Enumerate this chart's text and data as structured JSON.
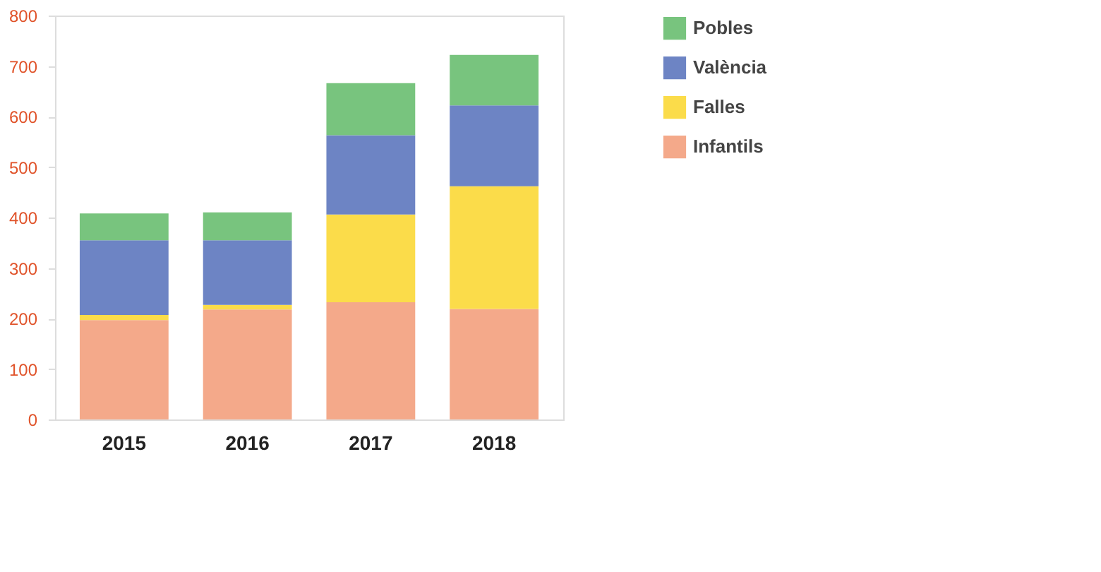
{
  "chart_data": {
    "type": "bar",
    "stacked": true,
    "categories": [
      "2015",
      "2016",
      "2017",
      "2018"
    ],
    "series": [
      {
        "name": "Infantils",
        "color": "#f4a98a",
        "values": [
          197,
          218,
          232,
          219
        ]
      },
      {
        "name": "Falles",
        "color": "#fbdc4a",
        "values": [
          10,
          9,
          174,
          243
        ]
      },
      {
        "name": "València",
        "color": "#6d84c4",
        "values": [
          148,
          128,
          157,
          160
        ]
      },
      {
        "name": "Pobles",
        "color": "#78c47e",
        "values": [
          53,
          55,
          103,
          100
        ]
      }
    ],
    "ylim": [
      0,
      800
    ],
    "yticks": [
      0,
      100,
      200,
      300,
      400,
      500,
      600,
      700,
      800
    ],
    "grid": false,
    "legend": "right"
  }
}
